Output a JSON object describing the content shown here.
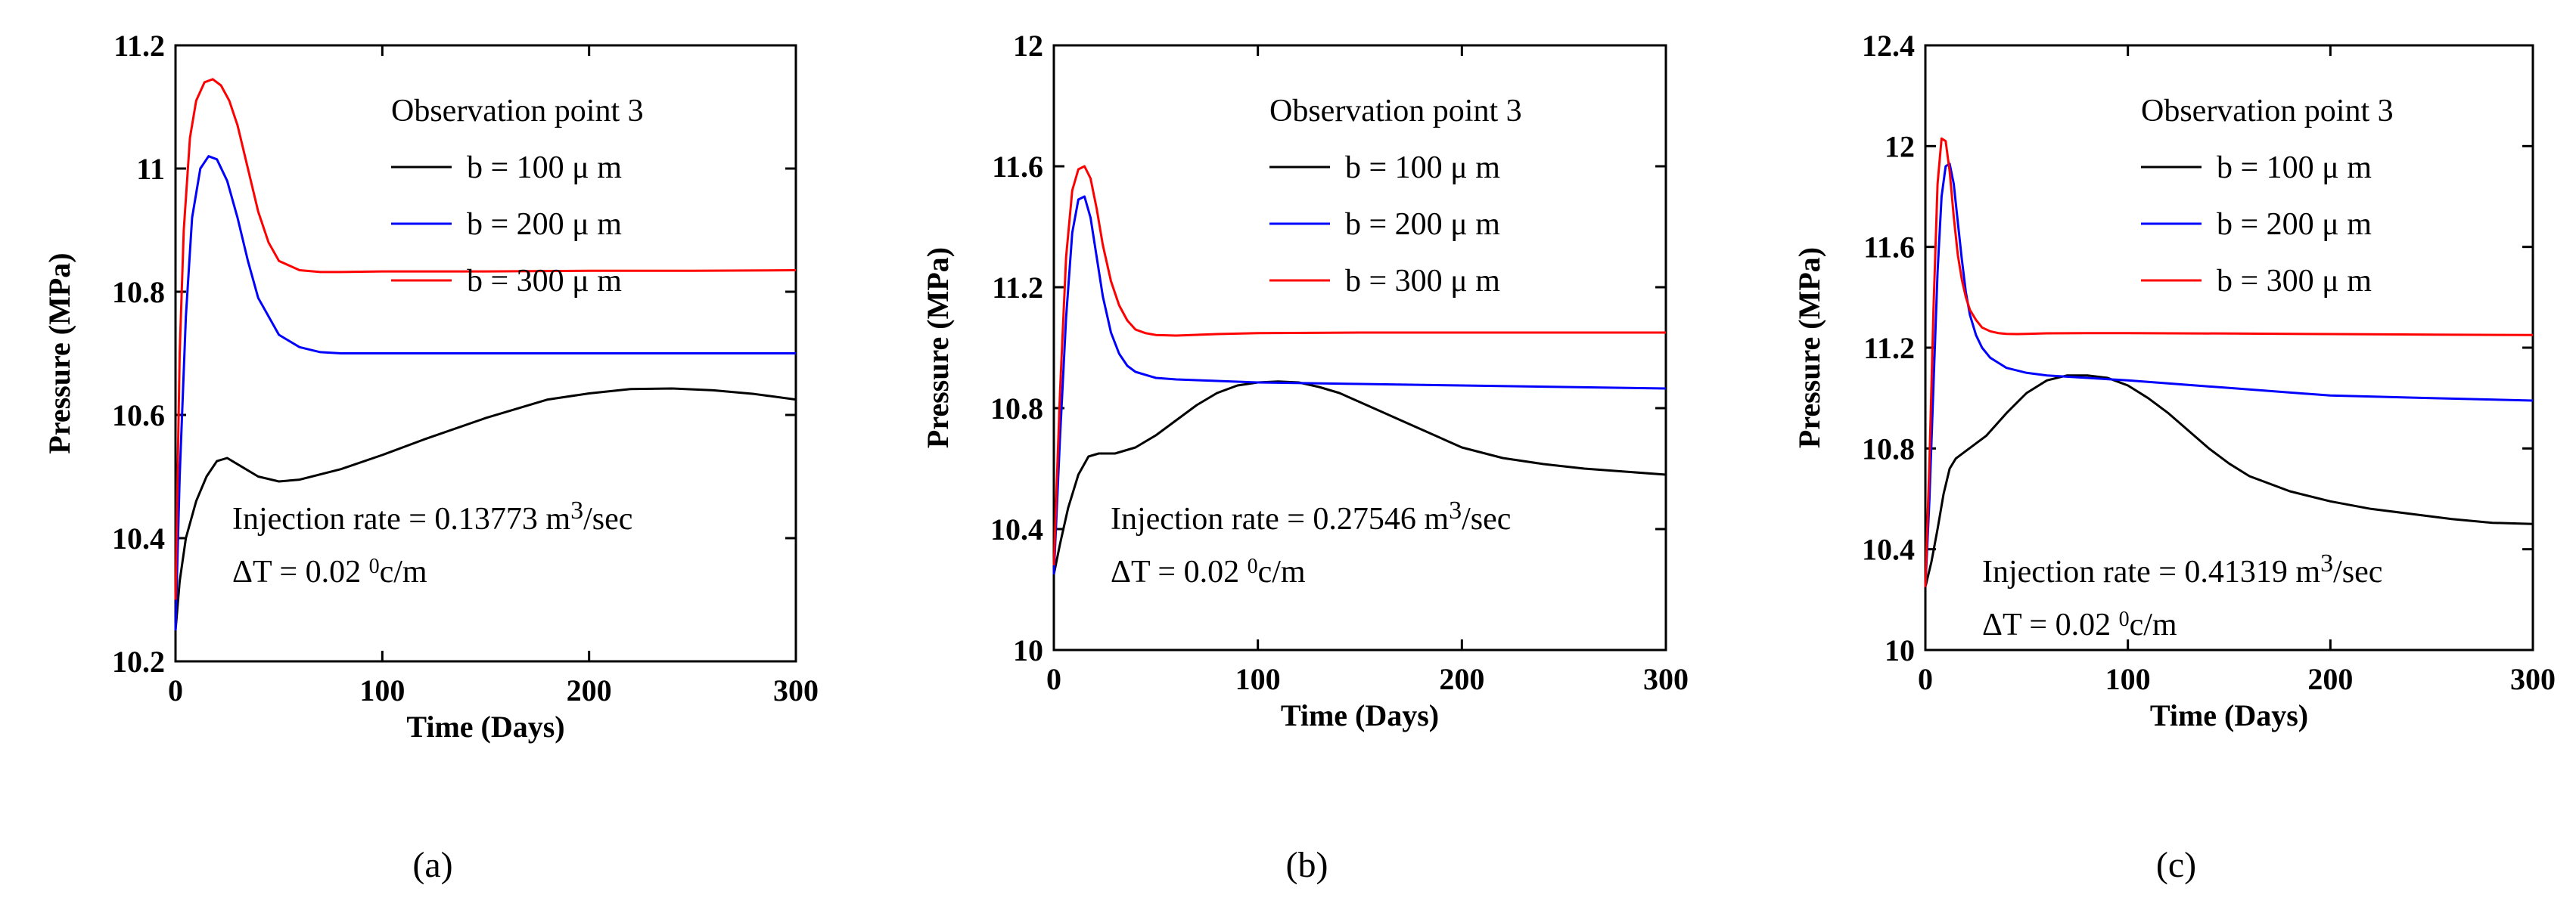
{
  "figure": {
    "legend_title": "Observation point 3",
    "colors": {
      "b100": "#000000",
      "b200": "#0000ff",
      "b300": "#ff0000"
    }
  },
  "chart_data": [
    {
      "type": "line",
      "panel_label": "(a)",
      "xlabel": "Time (Days)",
      "ylabel": "Pressure (MPa)",
      "xlim": [
        0,
        300
      ],
      "ylim": [
        10.2,
        11.2
      ],
      "xticks": [
        0,
        100,
        200,
        300
      ],
      "yticks": [
        10.2,
        10.4,
        10.6,
        10.8,
        11,
        11.2
      ],
      "ytick_labels": [
        "10.2",
        "10.4",
        "10.6",
        "10.8",
        "11",
        "11.2"
      ],
      "legend_title": "Observation point 3",
      "annotation": {
        "rate_prefix": "Injection rate = 0.13773 m",
        "rate_sup": "3",
        "rate_suffix": "/sec",
        "dt_prefix": "ΔT = 0.02 ",
        "dt_sup": "0",
        "dt_suffix": "c/m"
      },
      "series": [
        {
          "name": "b = 100 μ m",
          "color": "#000000",
          "x": [
            0,
            2,
            5,
            10,
            15,
            20,
            25,
            30,
            40,
            50,
            60,
            80,
            100,
            120,
            150,
            180,
            200,
            220,
            240,
            260,
            280,
            300
          ],
          "y": [
            10.25,
            10.33,
            10.4,
            10.46,
            10.5,
            10.525,
            10.53,
            10.52,
            10.5,
            10.492,
            10.495,
            10.512,
            10.535,
            10.56,
            10.595,
            10.625,
            10.635,
            10.642,
            10.643,
            10.64,
            10.634,
            10.625
          ]
        },
        {
          "name": "b = 200 μ m",
          "color": "#0000ff",
          "x": [
            0,
            2,
            5,
            8,
            12,
            16,
            20,
            25,
            30,
            35,
            40,
            50,
            60,
            70,
            80,
            100,
            150,
            200,
            250,
            300
          ],
          "y": [
            10.25,
            10.5,
            10.76,
            10.92,
            11.0,
            11.02,
            11.015,
            10.98,
            10.92,
            10.85,
            10.79,
            10.73,
            10.71,
            10.702,
            10.7,
            10.7,
            10.7,
            10.7,
            10.7,
            10.7
          ]
        },
        {
          "name": "b = 300 μ m",
          "color": "#ff0000",
          "x": [
            0,
            2,
            4,
            7,
            10,
            14,
            18,
            22,
            26,
            30,
            35,
            40,
            45,
            50,
            60,
            70,
            80,
            100,
            150,
            200,
            250,
            300
          ],
          "y": [
            10.3,
            10.7,
            10.9,
            11.05,
            11.11,
            11.14,
            11.145,
            11.135,
            11.11,
            11.07,
            11.0,
            10.93,
            10.88,
            10.85,
            10.835,
            10.832,
            10.832,
            10.833,
            10.833,
            10.834,
            10.834,
            10.835
          ]
        }
      ]
    },
    {
      "type": "line",
      "panel_label": "(b)",
      "xlabel": "Time (Days)",
      "ylabel": "Pressure (MPa)",
      "xlim": [
        0,
        300
      ],
      "ylim": [
        10,
        12
      ],
      "xticks": [
        0,
        100,
        200,
        300
      ],
      "yticks": [
        10,
        10.4,
        10.8,
        11.2,
        11.6,
        12
      ],
      "ytick_labels": [
        "10",
        "10.4",
        "10.8",
        "11.2",
        "11.6",
        "12"
      ],
      "legend_title": "Observation point 3",
      "annotation": {
        "rate_prefix": "Injection rate = 0.27546 m",
        "rate_sup": "3",
        "rate_suffix": "/sec",
        "dt_prefix": "ΔT = 0.02 ",
        "dt_sup": "0",
        "dt_suffix": "c/m"
      },
      "series": [
        {
          "name": "b = 100 μ m",
          "color": "#000000",
          "x": [
            0,
            3,
            7,
            12,
            17,
            22,
            30,
            40,
            50,
            60,
            70,
            80,
            90,
            100,
            110,
            120,
            130,
            140,
            150,
            160,
            170,
            180,
            200,
            220,
            240,
            260,
            280,
            300
          ],
          "y": [
            10.25,
            10.35,
            10.47,
            10.58,
            10.64,
            10.65,
            10.65,
            10.67,
            10.71,
            10.76,
            10.81,
            10.85,
            10.875,
            10.885,
            10.888,
            10.885,
            10.87,
            10.85,
            10.82,
            10.79,
            10.76,
            10.73,
            10.67,
            10.635,
            10.615,
            10.6,
            10.59,
            10.58
          ]
        },
        {
          "name": "b = 200 μ m",
          "color": "#0000ff",
          "x": [
            0,
            3,
            6,
            9,
            12,
            15,
            18,
            21,
            24,
            28,
            32,
            36,
            40,
            50,
            60,
            80,
            100,
            150,
            200,
            250,
            300
          ],
          "y": [
            10.25,
            10.7,
            11.1,
            11.38,
            11.49,
            11.5,
            11.43,
            11.3,
            11.17,
            11.05,
            10.98,
            10.94,
            10.92,
            10.9,
            10.895,
            10.89,
            10.885,
            10.88,
            10.875,
            10.87,
            10.865
          ]
        },
        {
          "name": "b = 300 μ m",
          "color": "#ff0000",
          "x": [
            0,
            3,
            6,
            9,
            12,
            15,
            18,
            21,
            24,
            28,
            32,
            36,
            40,
            45,
            50,
            60,
            80,
            100,
            150,
            200,
            250,
            300
          ],
          "y": [
            10.28,
            10.85,
            11.3,
            11.52,
            11.59,
            11.6,
            11.56,
            11.46,
            11.34,
            11.22,
            11.14,
            11.09,
            11.06,
            11.048,
            11.042,
            11.04,
            11.045,
            11.048,
            11.05,
            11.05,
            11.05,
            11.05
          ]
        }
      ]
    },
    {
      "type": "line",
      "panel_label": "(c)",
      "xlabel": "Time (Days)",
      "ylabel": "Pressure (MPa)",
      "xlim": [
        0,
        300
      ],
      "ylim": [
        10,
        12.4
      ],
      "xticks": [
        0,
        100,
        200,
        300
      ],
      "yticks": [
        10,
        10.4,
        10.8,
        11.2,
        11.6,
        12,
        12.4
      ],
      "ytick_labels": [
        "10",
        "10.4",
        "10.8",
        "11.2",
        "11.6",
        "12",
        "12.4"
      ],
      "legend_title": "Observation point 3",
      "annotation": {
        "rate_prefix": "Injection rate = 0.41319 m",
        "rate_sup": "3",
        "rate_suffix": "/sec",
        "dt_prefix": "ΔT = 0.02 ",
        "dt_sup": "0",
        "dt_suffix": "c/m"
      },
      "series": [
        {
          "name": "b = 100 μ m",
          "color": "#000000",
          "x": [
            0,
            3,
            6,
            9,
            12,
            15,
            20,
            30,
            40,
            50,
            60,
            70,
            80,
            90,
            100,
            110,
            120,
            130,
            140,
            150,
            160,
            180,
            200,
            220,
            240,
            260,
            280,
            300
          ],
          "y": [
            10.25,
            10.35,
            10.48,
            10.62,
            10.72,
            10.76,
            10.79,
            10.85,
            10.94,
            11.02,
            11.07,
            11.09,
            11.09,
            11.08,
            11.05,
            11.0,
            10.94,
            10.87,
            10.8,
            10.74,
            10.69,
            10.63,
            10.59,
            10.56,
            10.54,
            10.52,
            10.505,
            10.5
          ]
        },
        {
          "name": "b = 200 μ m",
          "color": "#0000ff",
          "x": [
            0,
            2,
            4,
            6,
            8,
            10,
            12,
            14,
            16,
            18,
            20,
            22,
            25,
            28,
            32,
            36,
            40,
            50,
            60,
            80,
            100,
            150,
            200,
            250,
            300
          ],
          "y": [
            10.25,
            10.6,
            11.05,
            11.5,
            11.8,
            11.92,
            11.93,
            11.85,
            11.7,
            11.55,
            11.42,
            11.33,
            11.25,
            11.2,
            11.16,
            11.14,
            11.12,
            11.1,
            11.09,
            11.08,
            11.07,
            11.04,
            11.01,
            11.0,
            10.99
          ]
        },
        {
          "name": "b = 300 μ m",
          "color": "#ff0000",
          "x": [
            0,
            2,
            4,
            6,
            8,
            10,
            12,
            14,
            16,
            18,
            20,
            22,
            25,
            28,
            32,
            36,
            40,
            45,
            50,
            60,
            80,
            100,
            150,
            200,
            250,
            300
          ],
          "y": [
            10.25,
            10.75,
            11.35,
            11.85,
            12.03,
            12.02,
            11.9,
            11.72,
            11.57,
            11.47,
            11.4,
            11.35,
            11.31,
            11.28,
            11.265,
            11.258,
            11.255,
            11.254,
            11.255,
            11.257,
            11.258,
            11.258,
            11.256,
            11.254,
            11.252,
            11.25
          ]
        }
      ]
    }
  ]
}
